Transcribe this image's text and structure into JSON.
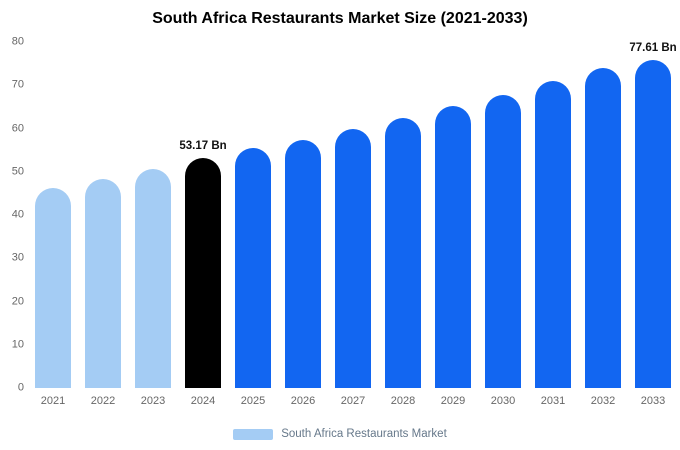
{
  "title": "South Africa Restaurants Market Size (2021-2033)",
  "legend": {
    "label": "South Africa Restaurants Market"
  },
  "colors": {
    "historical": "#A4CCF4",
    "highlight": "#000000",
    "forecast": "#1266F1",
    "axis_text": "#666666",
    "title_text": "#000000",
    "background": "#FFFFFF"
  },
  "chart_data": {
    "type": "bar",
    "title": "South Africa Restaurants Market Size (2021-2033)",
    "xlabel": "",
    "ylabel": "",
    "categories": [
      "2021",
      "2022",
      "2023",
      "2024",
      "2025",
      "2026",
      "2027",
      "2028",
      "2029",
      "2030",
      "2031",
      "2032",
      "2033"
    ],
    "values": [
      46.2,
      48.3,
      50.6,
      53.17,
      55.4,
      57.4,
      59.9,
      62.4,
      65.2,
      67.8,
      70.9,
      73.9,
      77.61
    ],
    "bar_colors": [
      "#A4CCF4",
      "#A4CCF4",
      "#A4CCF4",
      "#000000",
      "#1266F1",
      "#1266F1",
      "#1266F1",
      "#1266F1",
      "#1266F1",
      "#1266F1",
      "#1266F1",
      "#1266F1",
      "#1266F1"
    ],
    "ylim": [
      0,
      80
    ],
    "yticks": [
      0,
      10,
      20,
      30,
      40,
      50,
      60,
      70,
      80
    ],
    "grid": false,
    "legend_position": "bottom",
    "annotations": [
      {
        "category": "2024",
        "text": "53.17 Bn"
      },
      {
        "category": "2033",
        "text": "77.61 Bn"
      }
    ]
  }
}
